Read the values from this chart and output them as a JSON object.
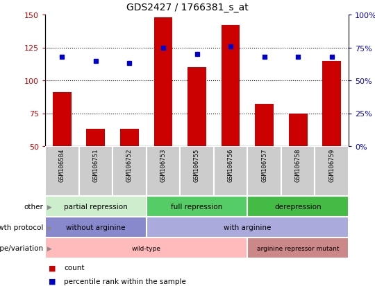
{
  "title": "GDS2427 / 1766381_s_at",
  "samples": [
    "GSM106504",
    "GSM106751",
    "GSM106752",
    "GSM106753",
    "GSM106755",
    "GSM106756",
    "GSM106757",
    "GSM106758",
    "GSM106759"
  ],
  "bar_values": [
    91,
    63,
    63,
    148,
    110,
    142,
    82,
    75,
    115
  ],
  "dot_values_pct": [
    68,
    65,
    63,
    75,
    70,
    76,
    68,
    68,
    68
  ],
  "bar_color": "#cc0000",
  "dot_color": "#0000cc",
  "ylim_left": [
    50,
    150
  ],
  "ylim_right": [
    0,
    100
  ],
  "yticks_left": [
    50,
    75,
    100,
    125,
    150
  ],
  "yticks_right": [
    0,
    25,
    50,
    75,
    100
  ],
  "ytick_labels_right": [
    "0%",
    "25%",
    "50%",
    "75%",
    "100%"
  ],
  "groups_other": [
    {
      "label": "partial repression",
      "start": 0,
      "end": 3,
      "color": "#bbeecc"
    },
    {
      "label": "full repression",
      "start": 3,
      "end": 6,
      "color": "#55cc77"
    },
    {
      "label": "derepression",
      "start": 6,
      "end": 9,
      "color": "#44bb55"
    }
  ],
  "groups_growth": [
    {
      "label": "without arginine",
      "start": 0,
      "end": 3,
      "color": "#7777cc"
    },
    {
      "label": "with arginine",
      "start": 3,
      "end": 9,
      "color": "#aaaadd"
    }
  ],
  "groups_genotype": [
    {
      "label": "wild-type",
      "start": 0,
      "end": 6,
      "color": "#ffbbbb"
    },
    {
      "label": "arginine repressor mutant",
      "start": 6,
      "end": 9,
      "color": "#dd8888"
    }
  ],
  "row_labels": [
    "other",
    "growth protocol",
    "genotype/variation"
  ],
  "legend_bar_label": "count",
  "legend_dot_label": "percentile rank within the sample",
  "bg_color": "#ffffff",
  "tick_color_left": "#cc0000",
  "tick_color_right": "#0000cc",
  "gray_box_color": "#cccccc",
  "figure_width": 5.4,
  "figure_height": 4.14,
  "dpi": 100
}
